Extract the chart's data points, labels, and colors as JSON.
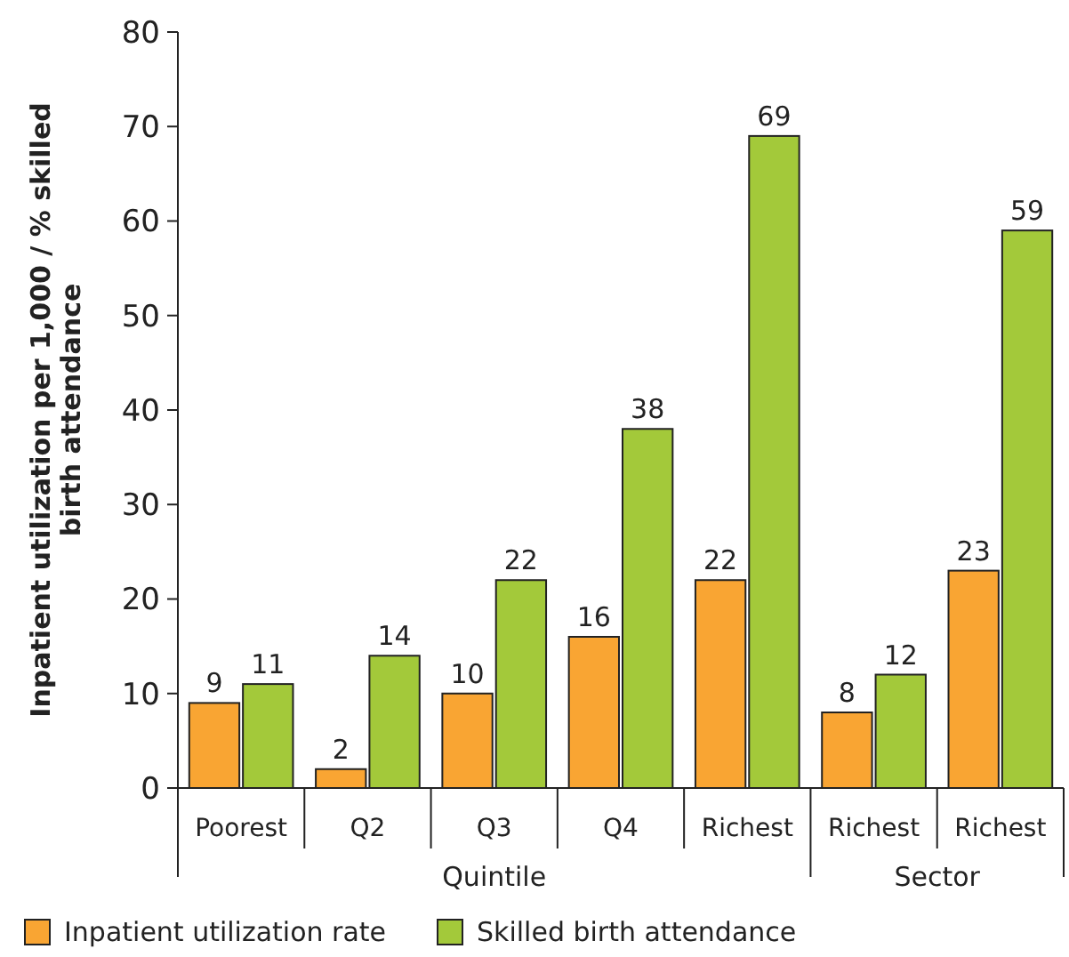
{
  "chart_data": {
    "type": "bar",
    "ylabel": "Inpatient utilization per 1,000 / % skilled birth attendance",
    "categories": [
      "Poorest",
      "Q2",
      "Q3",
      "Q4",
      "Richest",
      "Richest",
      "Richest"
    ],
    "series": [
      {
        "name": "Inpatient utilization rate",
        "color": "#f9a533",
        "values": [
          9,
          2,
          10,
          16,
          22,
          8,
          23
        ]
      },
      {
        "name": "Skilled birth attendance",
        "color": "#a3c93a",
        "values": [
          11,
          14,
          22,
          38,
          69,
          12,
          59
        ]
      }
    ],
    "ylim": [
      0,
      80
    ],
    "yticks": [
      0,
      10,
      20,
      30,
      40,
      50,
      60,
      70,
      80
    ],
    "data_labels": true,
    "legend": "bottom",
    "annotations": [
      "Quintile",
      "Sector"
    ]
  }
}
